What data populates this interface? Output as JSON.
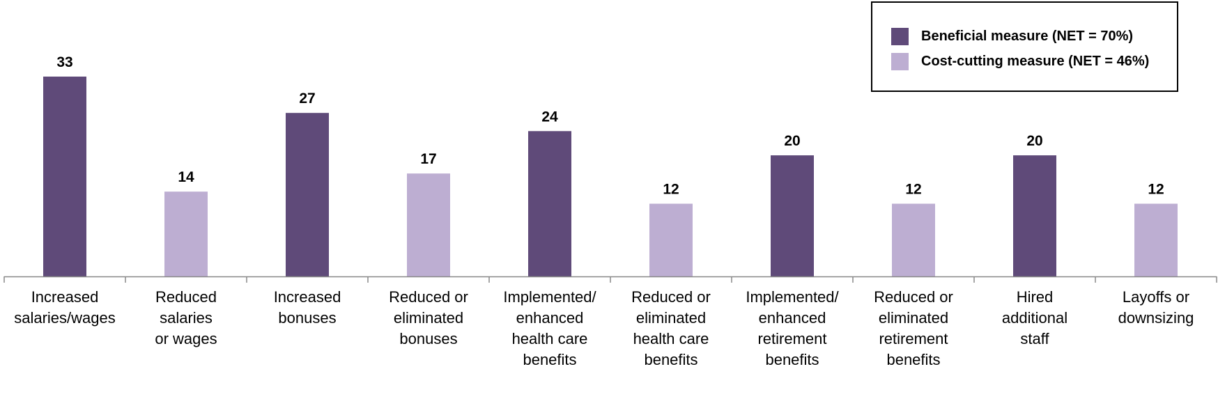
{
  "colors": {
    "beneficial": "#5F4A79",
    "cost_cutting": "#BDAED2",
    "axis": "#888888"
  },
  "legend": {
    "items": [
      {
        "label": "Beneficial measure (NET = 70%)",
        "color": "#5F4A79"
      },
      {
        "label": "Cost-cutting measure (NET = 46%)",
        "color": "#BDAED2"
      }
    ]
  },
  "chart_data": {
    "type": "bar",
    "categories": [
      [
        "Increased",
        "salaries/wages"
      ],
      [
        "Reduced",
        "salaries",
        "or wages"
      ],
      [
        "Increased",
        "bonuses"
      ],
      [
        "Reduced or",
        "eliminated",
        "bonuses"
      ],
      [
        "Implemented/",
        "enhanced",
        "health care",
        "benefits"
      ],
      [
        "Reduced or",
        "eliminated",
        "health care",
        "benefits"
      ],
      [
        "Implemented/",
        "enhanced",
        "retirement",
        "benefits"
      ],
      [
        "Reduced or",
        "eliminated",
        "retirement",
        "benefits"
      ],
      [
        "Hired",
        "additional",
        "staff"
      ],
      [
        "Layoffs or",
        "downsizing"
      ]
    ],
    "values": [
      33,
      14,
      27,
      17,
      24,
      12,
      20,
      12,
      20,
      12
    ],
    "groups": [
      "beneficial",
      "cost_cutting",
      "beneficial",
      "cost_cutting",
      "beneficial",
      "cost_cutting",
      "beneficial",
      "cost_cutting",
      "beneficial",
      "cost_cutting"
    ],
    "data_labels": [
      "33",
      "14",
      "27",
      "17",
      "24",
      "12",
      "20",
      "12",
      "20",
      "12"
    ],
    "ylim": [
      0,
      37
    ],
    "grid": false,
    "legend_position": "top-right"
  }
}
